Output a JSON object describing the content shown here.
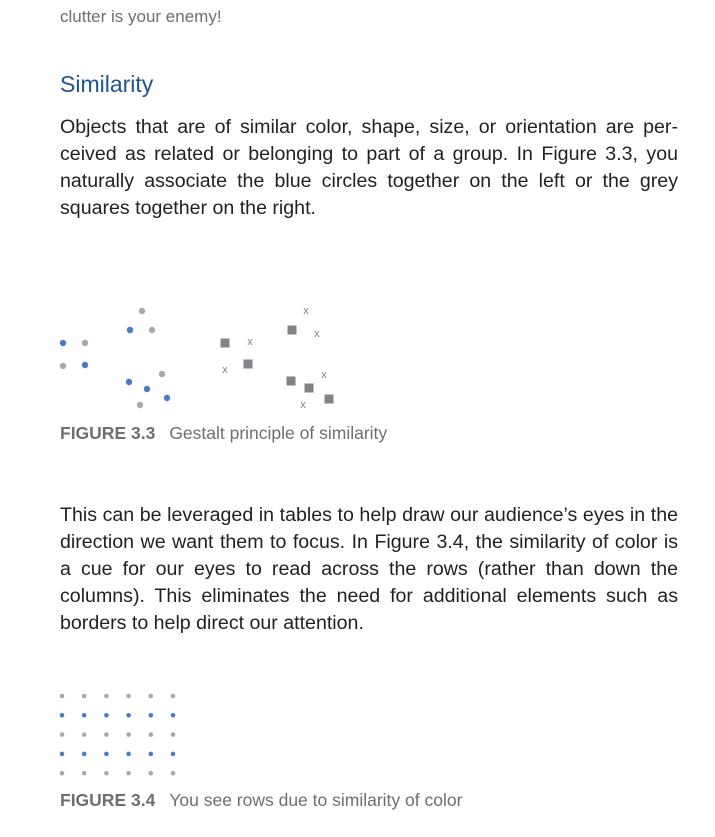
{
  "top_fragment": "clutter is your enemy!",
  "section": {
    "heading": "Similarity",
    "paragraph_1": "Objects that are of similar color, shape, size, or orientation are per-ceived as related or belonging to part of a group. In Figure 3.3, you naturally associate the blue circles together on the left or the grey squares together on the right.",
    "paragraph_2": "This can be leveraged in tables to help draw our audience’s eyes in the direction we want them to focus. In Figure 3.4, the similarity of color is a cue for our eyes to read across the rows (rather than down the columns). This eliminates the need for additional elements such as borders to help direct our attention."
  },
  "figure_3_3": {
    "label": "FIGURE 3.3",
    "caption": "Gestalt principle of similarity",
    "x_mark": "x"
  },
  "figure_3_4": {
    "label": "FIGURE 3.4",
    "caption": "You see rows due to similarity of color",
    "rows": 5,
    "columns": 6,
    "row_colors": [
      "grey",
      "blue",
      "grey",
      "blue",
      "grey"
    ]
  },
  "colors": {
    "blue": "#4a7bc4",
    "grey": "#a7a9ac",
    "square": "#808285",
    "heading": "#1f5692",
    "caption": "#6d6e71"
  }
}
